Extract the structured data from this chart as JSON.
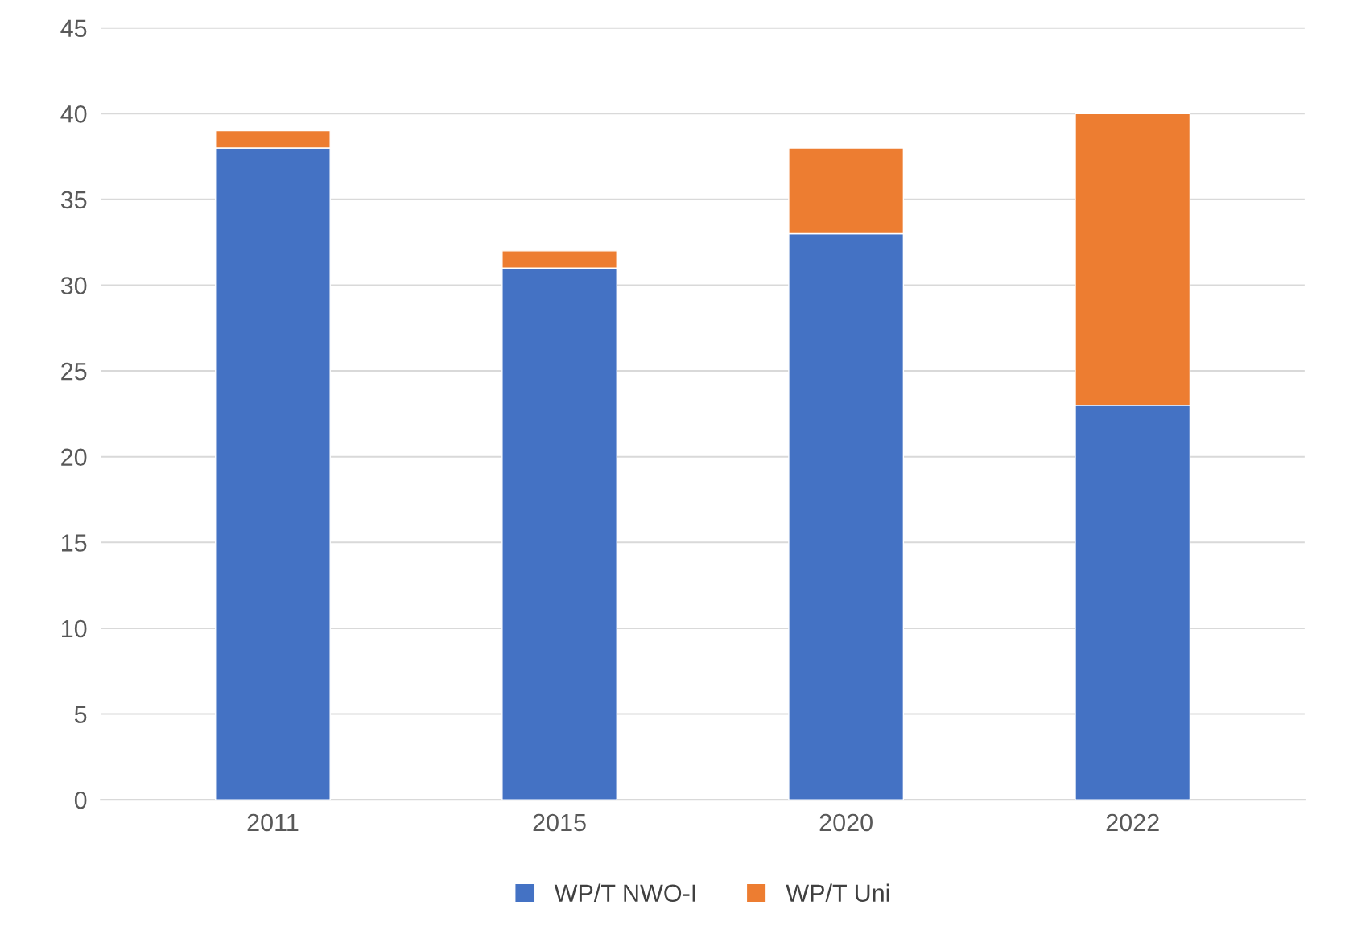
{
  "chart_data": {
    "type": "bar",
    "stacked": true,
    "categories": [
      "2011",
      "2015",
      "2020",
      "2022"
    ],
    "series": [
      {
        "name": "WP/T NWO-I",
        "color": "#4472c4",
        "values": [
          38,
          31,
          33,
          23
        ]
      },
      {
        "name": "WP/T Uni",
        "color": "#ed7d31",
        "values": [
          1,
          1,
          5,
          17
        ]
      }
    ],
    "ylim": [
      0,
      45
    ],
    "yticks": [
      0,
      5,
      10,
      15,
      20,
      25,
      30,
      35,
      40,
      45
    ],
    "grid": "y",
    "legend": "bottom"
  }
}
